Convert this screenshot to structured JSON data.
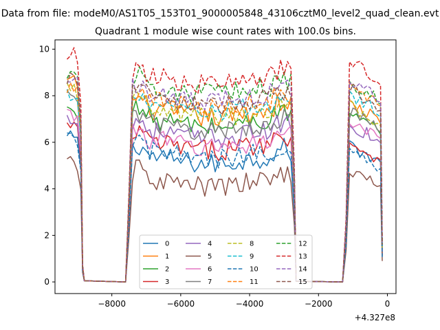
{
  "chart_data": {
    "type": "line",
    "suptitle": "Data from file: modeM0/AS1T05_153T01_9000005848_43106cztM0_level2_quad_clean.evt",
    "title": "Quadrant 1 module wise count rates with 100.0s bins.",
    "xlabel": "",
    "ylabel": "",
    "x_offset_label": "+4.327e8",
    "xlim": [
      -9650,
      250
    ],
    "ylim": [
      -0.5,
      10.4
    ],
    "xticks": [
      -8000,
      -6000,
      -4000,
      -2000,
      0
    ],
    "xtick_labels": [
      "−8000",
      "−6000",
      "−4000",
      "−2000",
      "0"
    ],
    "yticks": [
      0,
      2,
      4,
      6,
      8,
      10
    ],
    "ytick_labels": [
      "0",
      "2",
      "4",
      "6",
      "8",
      "10"
    ],
    "legend_location": "lower center",
    "grid": false,
    "segments": [
      {
        "x_start": -9300,
        "x_end": -8900,
        "x_step": 100
      },
      {
        "x_start": -7400,
        "x_end": -2800,
        "x_step": 100
      },
      {
        "x_start": -1100,
        "x_end": -300,
        "x_step": 100
      }
    ],
    "ramps": [
      {
        "x_from": -8900,
        "x_to": -8800,
        "to_fraction": 0.08
      },
      {
        "x_from": -8800,
        "x_to": -7600,
        "to_fraction": 0.0
      },
      {
        "x_from": -7600,
        "x_to": -7500,
        "to_fraction": 0.45
      },
      {
        "x_from": -2800,
        "x_to": -2700,
        "to_fraction": 0.55
      },
      {
        "x_from": -2700,
        "x_to": -1300,
        "to_fraction": 0.0
      },
      {
        "x_from": -1300,
        "x_to": -1200,
        "to_fraction": 0.3
      },
      {
        "x_from": -200,
        "x_to": -150,
        "to_fraction": 0.2
      }
    ],
    "series": [
      {
        "name": "0",
        "color": "#1f77b4",
        "dash": "solid",
        "start_level": 6.2,
        "mid_level": 5.4,
        "end_level": 5.6
      },
      {
        "name": "1",
        "color": "#ff7f0e",
        "dash": "solid",
        "start_level": 8.6,
        "mid_level": 7.4,
        "end_level": 7.4
      },
      {
        "name": "2",
        "color": "#2ca02c",
        "dash": "solid",
        "start_level": 7.4,
        "mid_level": 7.0,
        "end_level": 6.9
      },
      {
        "name": "3",
        "color": "#d62728",
        "dash": "solid",
        "start_level": 6.7,
        "mid_level": 6.0,
        "end_level": 5.7
      },
      {
        "name": "4",
        "color": "#9467bd",
        "dash": "solid",
        "start_level": 7.0,
        "mid_level": 6.5,
        "end_level": 6.5
      },
      {
        "name": "5",
        "color": "#8c564b",
        "dash": "solid",
        "start_level": 5.1,
        "mid_level": 4.4,
        "end_level": 4.5
      },
      {
        "name": "6",
        "color": "#e377c2",
        "dash": "solid",
        "start_level": 7.2,
        "mid_level": 6.1,
        "end_level": 6.7
      },
      {
        "name": "7",
        "color": "#7f7f7f",
        "dash": "solid",
        "start_level": 8.0,
        "mid_level": 6.8,
        "end_level": 7.0
      },
      {
        "name": "8",
        "color": "#bcbd22",
        "dash": "dashed",
        "start_level": 8.3,
        "mid_level": 7.4,
        "end_level": 7.3
      },
      {
        "name": "9",
        "color": "#17becf",
        "dash": "dashed",
        "start_level": 8.0,
        "mid_level": 7.6,
        "end_level": 7.7
      },
      {
        "name": "10",
        "color": "#1f77b4",
        "dash": "dashed",
        "start_level": 6.1,
        "mid_level": 5.6,
        "end_level": 5.3
      },
      {
        "name": "11",
        "color": "#ff7f0e",
        "dash": "dashed",
        "start_level": 8.4,
        "mid_level": 7.8,
        "end_level": 8.2
      },
      {
        "name": "12",
        "color": "#2ca02c",
        "dash": "dashed",
        "start_level": 9.0,
        "mid_level": 8.4,
        "end_level": 8.3
      },
      {
        "name": "13",
        "color": "#d62728",
        "dash": "dashed",
        "start_level": 9.8,
        "mid_level": 8.8,
        "end_level": 9.2
      },
      {
        "name": "14",
        "color": "#9467bd",
        "dash": "dashed",
        "start_level": 8.8,
        "mid_level": 8.1,
        "end_level": 8.4
      },
      {
        "name": "15",
        "color": "#8c564b",
        "dash": "dashed",
        "start_level": 8.7,
        "mid_level": 7.9,
        "end_level": 8.0
      }
    ]
  }
}
